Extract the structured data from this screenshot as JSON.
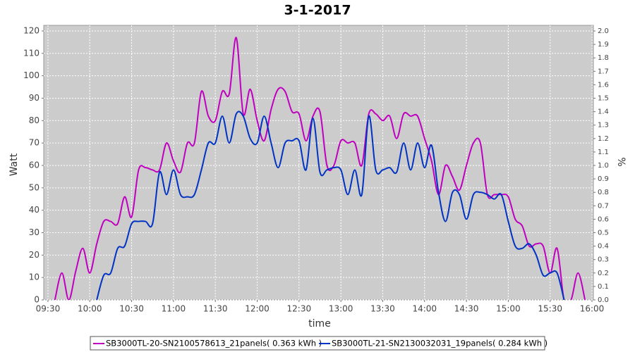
{
  "chart_data": {
    "type": "line",
    "title": "3-1-2017",
    "x_label": "time",
    "y_label": "Watt",
    "y2_label": "%",
    "x": [
      "09:35",
      "09:40",
      "09:45",
      "09:50",
      "09:55",
      "10:00",
      "10:05",
      "10:10",
      "10:15",
      "10:20",
      "10:25",
      "10:30",
      "10:35",
      "10:40",
      "10:45",
      "10:50",
      "10:55",
      "11:00",
      "11:05",
      "11:10",
      "11:15",
      "11:20",
      "11:25",
      "11:30",
      "11:35",
      "11:40",
      "11:45",
      "11:50",
      "11:55",
      "12:00",
      "12:05",
      "12:10",
      "12:15",
      "12:20",
      "12:25",
      "12:30",
      "12:35",
      "12:40",
      "12:45",
      "12:50",
      "12:55",
      "13:00",
      "13:05",
      "13:10",
      "13:15",
      "13:20",
      "13:25",
      "13:30",
      "13:35",
      "13:40",
      "13:45",
      "13:50",
      "13:55",
      "14:00",
      "14:05",
      "14:10",
      "14:15",
      "14:20",
      "14:25",
      "14:30",
      "14:35",
      "14:40",
      "14:45",
      "14:50",
      "14:55",
      "15:00",
      "15:05",
      "15:10",
      "15:15",
      "15:20",
      "15:25",
      "15:30",
      "15:35",
      "15:40",
      "15:45",
      "15:50",
      "15:55"
    ],
    "series": [
      {
        "name": "SB3000TL-20-SN2100578613_21panels( 0.363 kWh )",
        "color": "#c000c0",
        "values": [
          0,
          12,
          0,
          13,
          23,
          12,
          25,
          35,
          35,
          34,
          46,
          37,
          58,
          59,
          58,
          58,
          70,
          62,
          57,
          70,
          70,
          93,
          82,
          80,
          93,
          92,
          117,
          83,
          94,
          80,
          71,
          85,
          94,
          93,
          84,
          83,
          71,
          82,
          84,
          60,
          60,
          71,
          70,
          70,
          60,
          83,
          83,
          80,
          82,
          72,
          83,
          82,
          82,
          72,
          62,
          47,
          60,
          55,
          49,
          60,
          70,
          70,
          47,
          47,
          47,
          46,
          36,
          33,
          24,
          25,
          24,
          12,
          23,
          0,
          0,
          12,
          0
        ]
      },
      {
        "name": "SB3000TL-21-SN2130032031_19panels( 0.284 kWh )",
        "color": "#0033c4",
        "values": [
          null,
          null,
          null,
          null,
          null,
          null,
          0,
          11,
          12,
          23,
          24,
          34,
          35,
          35,
          34,
          57,
          47,
          58,
          47,
          46,
          47,
          58,
          70,
          70,
          82,
          70,
          83,
          82,
          72,
          70,
          82,
          70,
          59,
          70,
          71,
          71,
          58,
          81,
          57,
          58,
          59,
          58,
          47,
          58,
          47,
          82,
          58,
          58,
          59,
          57,
          70,
          58,
          70,
          59,
          69,
          48,
          35,
          48,
          47,
          36,
          47,
          48,
          47,
          45,
          47,
          35,
          24,
          23,
          25,
          20,
          11,
          12,
          12,
          0,
          null,
          null,
          null
        ]
      }
    ],
    "xlim": [
      "09:27",
      "16:01"
    ],
    "xticks": [
      "09:30",
      "10:00",
      "10:30",
      "11:00",
      "11:30",
      "12:00",
      "12:30",
      "13:00",
      "13:30",
      "14:00",
      "14:30",
      "15:00",
      "15:30",
      "16:00"
    ],
    "ylim": [
      0,
      122.5
    ],
    "yticks": [
      0,
      10,
      20,
      30,
      40,
      50,
      60,
      70,
      80,
      90,
      100,
      110,
      120
    ],
    "y2lim": [
      0,
      2.042
    ],
    "y2ticks": [
      {
        "value": 0,
        "label": "0.0"
      },
      0.1,
      0.2,
      0.3,
      0.4,
      0.5,
      0.6,
      0.7,
      0.8,
      0.9,
      {
        "value": 1,
        "label": "1.0"
      },
      1.1,
      1.2,
      1.3,
      1.4,
      1.5,
      1.6,
      1.7,
      1.8,
      1.9,
      {
        "value": 2,
        "label": "2.0"
      }
    ],
    "grid": true,
    "legend": "bottom"
  }
}
